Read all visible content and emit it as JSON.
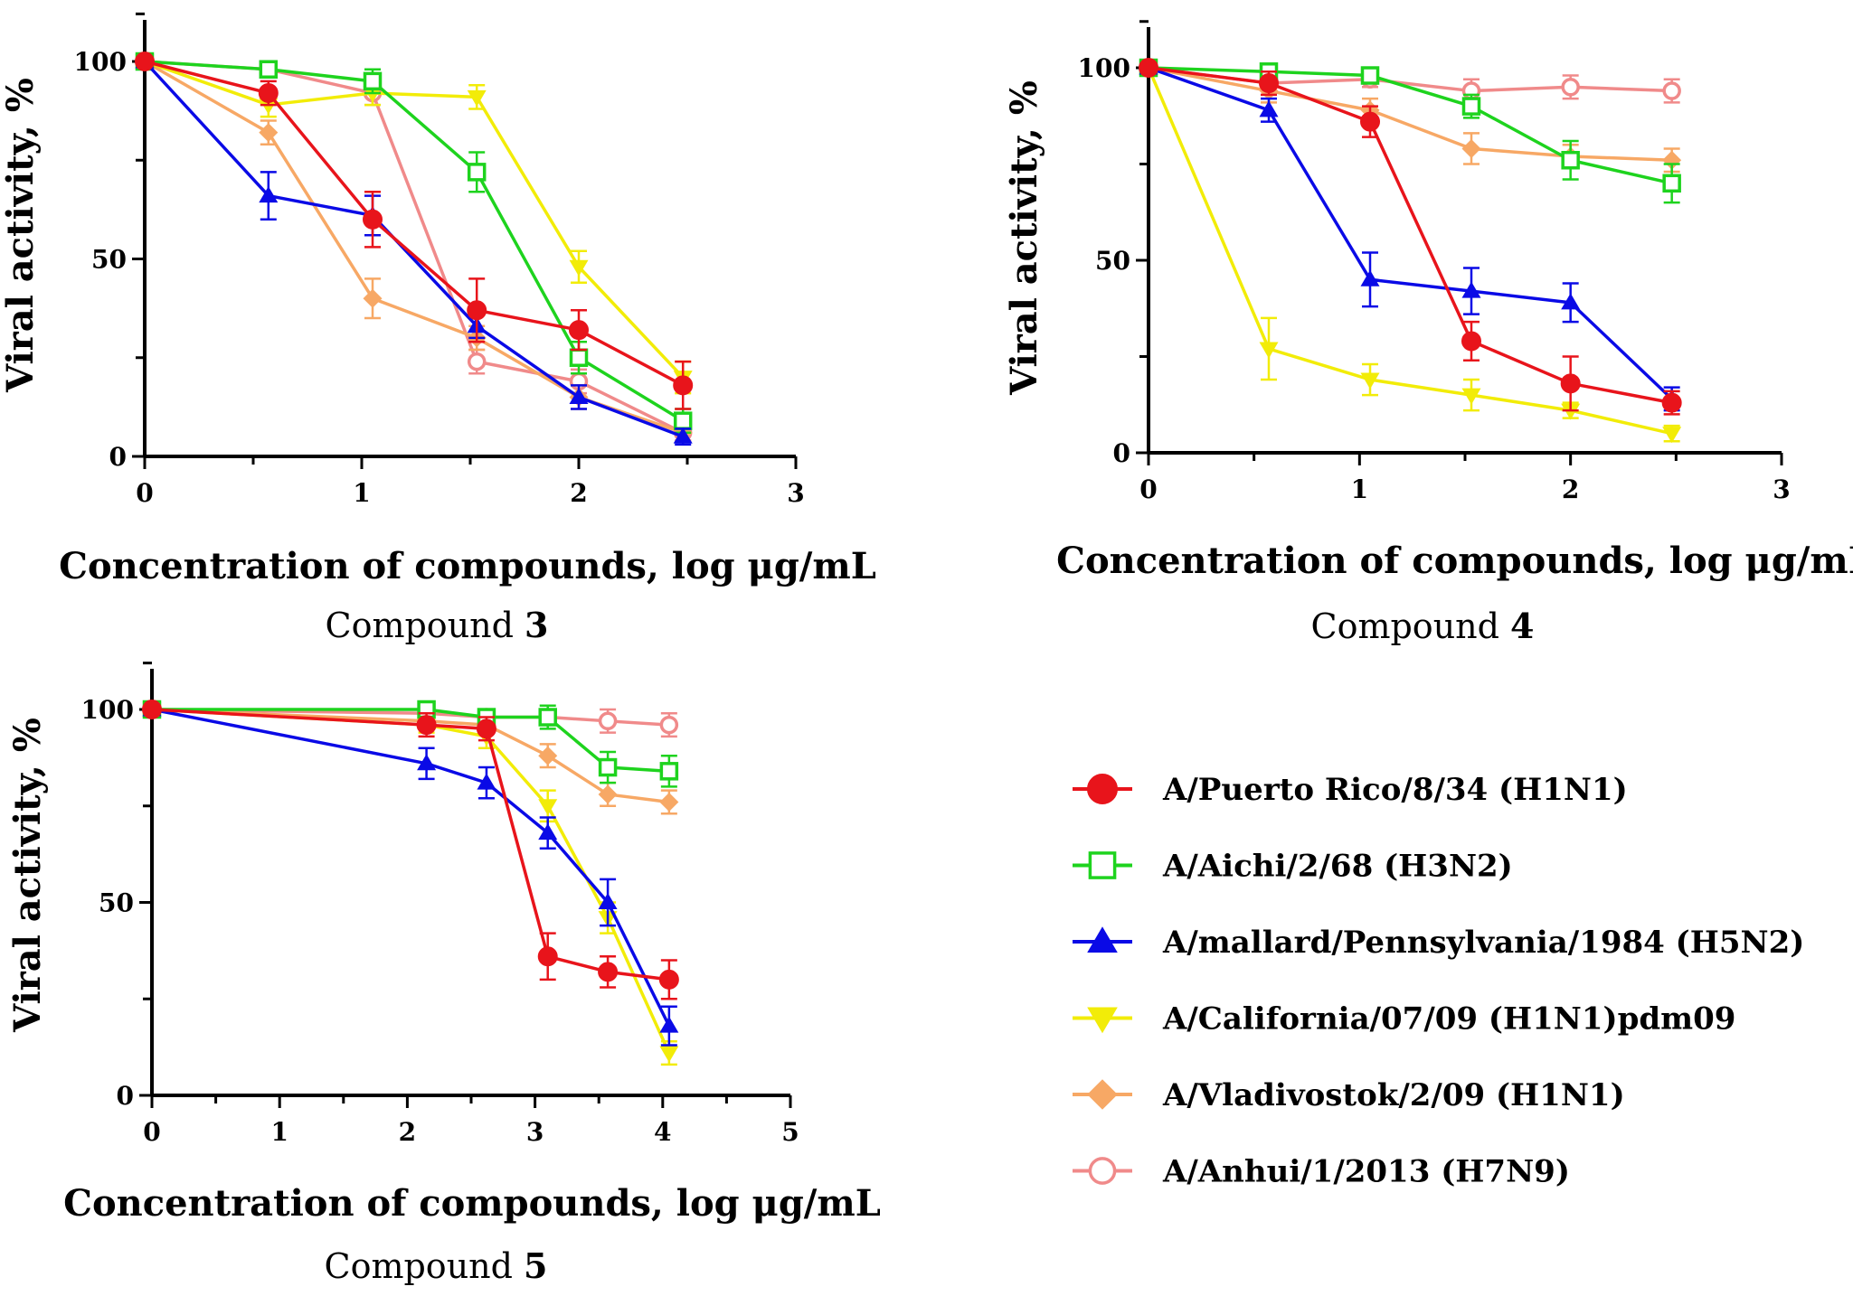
{
  "figure": {
    "legend": [
      {
        "series_key": "pr8",
        "label": "A/Puerto Rico/8/34 (H1N1)"
      },
      {
        "series_key": "aichi",
        "label": "A/Aichi/2/68 (H3N2)"
      },
      {
        "series_key": "mallard",
        "label": "A/mallard/Pennsylvania/1984 (H5N2)"
      },
      {
        "series_key": "california",
        "label": "A/California/07/09 (H1N1)pdm09"
      },
      {
        "series_key": "vladivostok",
        "label": "A/Vladivostok/2/09 (H1N1)"
      },
      {
        "series_key": "anhui",
        "label": "A/Anhui/1/2013 (H7N9)"
      }
    ],
    "series_styles": {
      "pr8": {
        "color": "#e8141b",
        "marker": "circle-filled"
      },
      "aichi": {
        "color": "#1ed31e",
        "marker": "square-open"
      },
      "mallard": {
        "color": "#0a0ae6",
        "marker": "triangle-up-filled"
      },
      "california": {
        "color": "#f2ec08",
        "marker": "triangle-down-filled"
      },
      "vladivostok": {
        "color": "#f7a865",
        "marker": "diamond-filled"
      },
      "anhui": {
        "color": "#f08a8a",
        "marker": "circle-open"
      }
    }
  },
  "chart_data": [
    {
      "type": "line",
      "title": "",
      "caption_prefix": "Compound ",
      "caption_number": "3",
      "xlabel": "Concentration of compounds, log μg/mL",
      "ylabel": "Viral activity, %",
      "xlim": [
        0,
        3
      ],
      "ylim": [
        0,
        100
      ],
      "xticks": [
        "0",
        "1",
        "2",
        "3"
      ],
      "yticks": [
        "0",
        "50",
        "100"
      ],
      "grid": false,
      "series": [
        {
          "key": "pr8",
          "name": "A/Puerto Rico/8/34 (H1N1)",
          "x": [
            0,
            0.57,
            1.05,
            1.53,
            2.0,
            2.48
          ],
          "y": [
            100,
            92,
            60,
            37,
            32,
            18
          ],
          "err": [
            0,
            3,
            7,
            8,
            5,
            6
          ]
        },
        {
          "key": "aichi",
          "name": "A/Aichi/2/68 (H3N2)",
          "x": [
            0,
            0.57,
            1.05,
            1.53,
            2.0,
            2.48
          ],
          "y": [
            100,
            98,
            95,
            72,
            25,
            9
          ],
          "err": [
            0,
            2,
            3,
            5,
            4,
            3
          ]
        },
        {
          "key": "mallard",
          "name": "A/mallard/Pennsylvania/1984 (H5N2)",
          "x": [
            0,
            0.57,
            1.05,
            1.53,
            2.0,
            2.48
          ],
          "y": [
            100,
            66,
            61,
            33,
            15,
            5
          ],
          "err": [
            0,
            6,
            5,
            3,
            3,
            2
          ]
        },
        {
          "key": "california",
          "name": "A/California/07/09 (H1N1)pdm09",
          "x": [
            0,
            0.57,
            1.05,
            1.53,
            2.0,
            2.48
          ],
          "y": [
            100,
            89,
            92,
            91,
            48,
            20
          ],
          "err": [
            0,
            3,
            3,
            3,
            4,
            4
          ]
        },
        {
          "key": "vladivostok",
          "name": "A/Vladivostok/2/09 (H1N1)",
          "x": [
            0,
            0.57,
            1.05,
            1.53,
            2.0,
            2.48
          ],
          "y": [
            100,
            82,
            40,
            30,
            15,
            6
          ],
          "err": [
            0,
            3,
            5,
            3,
            3,
            2
          ]
        },
        {
          "key": "anhui",
          "name": "A/Anhui/1/2013 (H7N9)",
          "x": [
            0,
            0.57,
            1.05,
            1.53,
            2.0,
            2.48
          ],
          "y": [
            100,
            98,
            92,
            24,
            19,
            6
          ],
          "err": [
            0,
            2,
            3,
            3,
            3,
            2
          ]
        }
      ]
    },
    {
      "type": "line",
      "title": "",
      "caption_prefix": "Compound ",
      "caption_number": "4",
      "xlabel": "Concentration of compounds, log μg/mL",
      "ylabel": "Viral activity, %",
      "xlim": [
        0,
        3
      ],
      "ylim": [
        0,
        100
      ],
      "xticks": [
        "0",
        "1",
        "2",
        "3"
      ],
      "yticks": [
        "0",
        "50",
        "100"
      ],
      "grid": false,
      "series": [
        {
          "key": "pr8",
          "name": "A/Puerto Rico/8/34 (H1N1)",
          "x": [
            0,
            0.57,
            1.05,
            1.53,
            2.0,
            2.48
          ],
          "y": [
            100,
            96,
            86,
            29,
            18,
            13
          ],
          "err": [
            0,
            3,
            4,
            5,
            7,
            3
          ]
        },
        {
          "key": "aichi",
          "name": "A/Aichi/2/68 (H3N2)",
          "x": [
            0,
            0.57,
            1.05,
            1.53,
            2.0,
            2.48
          ],
          "y": [
            100,
            99,
            98,
            90,
            76,
            70
          ],
          "err": [
            0,
            2,
            2,
            3,
            5,
            5
          ]
        },
        {
          "key": "mallard",
          "name": "A/mallard/Pennsylvania/1984 (H5N2)",
          "x": [
            0,
            0.57,
            1.05,
            1.53,
            2.0,
            2.48
          ],
          "y": [
            100,
            89,
            45,
            42,
            39,
            14
          ],
          "err": [
            0,
            3,
            7,
            6,
            5,
            3
          ]
        },
        {
          "key": "california",
          "name": "A/California/07/09 (H1N1)pdm09",
          "x": [
            0,
            0.57,
            1.05,
            1.53,
            2.0,
            2.48
          ],
          "y": [
            100,
            27,
            19,
            15,
            11,
            5
          ],
          "err": [
            0,
            8,
            4,
            4,
            2,
            2
          ]
        },
        {
          "key": "vladivostok",
          "name": "A/Vladivostok/2/09 (H1N1)",
          "x": [
            0,
            0.57,
            1.05,
            1.53,
            2.0,
            2.48
          ],
          "y": [
            100,
            94,
            89,
            79,
            77,
            76
          ],
          "err": [
            0,
            3,
            3,
            4,
            3,
            3
          ]
        },
        {
          "key": "anhui",
          "name": "A/Anhui/1/2013 (H7N9)",
          "x": [
            0,
            0.57,
            1.05,
            1.53,
            2.0,
            2.48
          ],
          "y": [
            100,
            96,
            97,
            94,
            95,
            94
          ],
          "err": [
            0,
            2,
            2,
            3,
            3,
            3
          ]
        }
      ]
    },
    {
      "type": "line",
      "title": "",
      "caption_prefix": "Compound ",
      "caption_number": "5",
      "xlabel": "Concentration of compounds, log μg/mL",
      "ylabel": "Viral activity, %",
      "xlim": [
        0,
        5
      ],
      "ylim": [
        0,
        100
      ],
      "xticks": [
        "0",
        "1",
        "2",
        "3",
        "4",
        "5"
      ],
      "yticks": [
        "0",
        "50",
        "100"
      ],
      "grid": false,
      "series": [
        {
          "key": "pr8",
          "name": "A/Puerto Rico/8/34 (H1N1)",
          "x": [
            0,
            2.15,
            2.62,
            3.1,
            3.57,
            4.05
          ],
          "y": [
            100,
            96,
            95,
            36,
            32,
            30
          ],
          "err": [
            0,
            3,
            3,
            6,
            4,
            5
          ]
        },
        {
          "key": "aichi",
          "name": "A/Aichi/2/68 (H3N2)",
          "x": [
            0,
            2.15,
            2.62,
            3.1,
            3.57,
            4.05
          ],
          "y": [
            100,
            100,
            98,
            98,
            85,
            84
          ],
          "err": [
            0,
            2,
            2,
            3,
            4,
            4
          ]
        },
        {
          "key": "mallard",
          "name": "A/mallard/Pennsylvania/1984 (H5N2)",
          "x": [
            0,
            2.15,
            2.62,
            3.1,
            3.57,
            4.05
          ],
          "y": [
            100,
            86,
            81,
            68,
            50,
            18
          ],
          "err": [
            0,
            4,
            4,
            4,
            6,
            5
          ]
        },
        {
          "key": "california",
          "name": "A/California/07/09 (H1N1)pdm09",
          "x": [
            0,
            2.15,
            2.62,
            3.1,
            3.57,
            4.05
          ],
          "y": [
            100,
            96,
            93,
            75,
            46,
            11
          ],
          "err": [
            0,
            2,
            3,
            4,
            4,
            3
          ]
        },
        {
          "key": "vladivostok",
          "name": "A/Vladivostok/2/09 (H1N1)",
          "x": [
            0,
            2.15,
            2.62,
            3.1,
            3.57,
            4.05
          ],
          "y": [
            100,
            97,
            96,
            88,
            78,
            76
          ],
          "err": [
            0,
            2,
            2,
            3,
            3,
            3
          ]
        },
        {
          "key": "anhui",
          "name": "A/Anhui/1/2013 (H7N9)",
          "x": [
            0,
            2.15,
            2.62,
            3.1,
            3.57,
            4.05
          ],
          "y": [
            100,
            99,
            98,
            98,
            97,
            96
          ],
          "err": [
            0,
            2,
            2,
            2,
            3,
            3
          ]
        }
      ]
    }
  ]
}
